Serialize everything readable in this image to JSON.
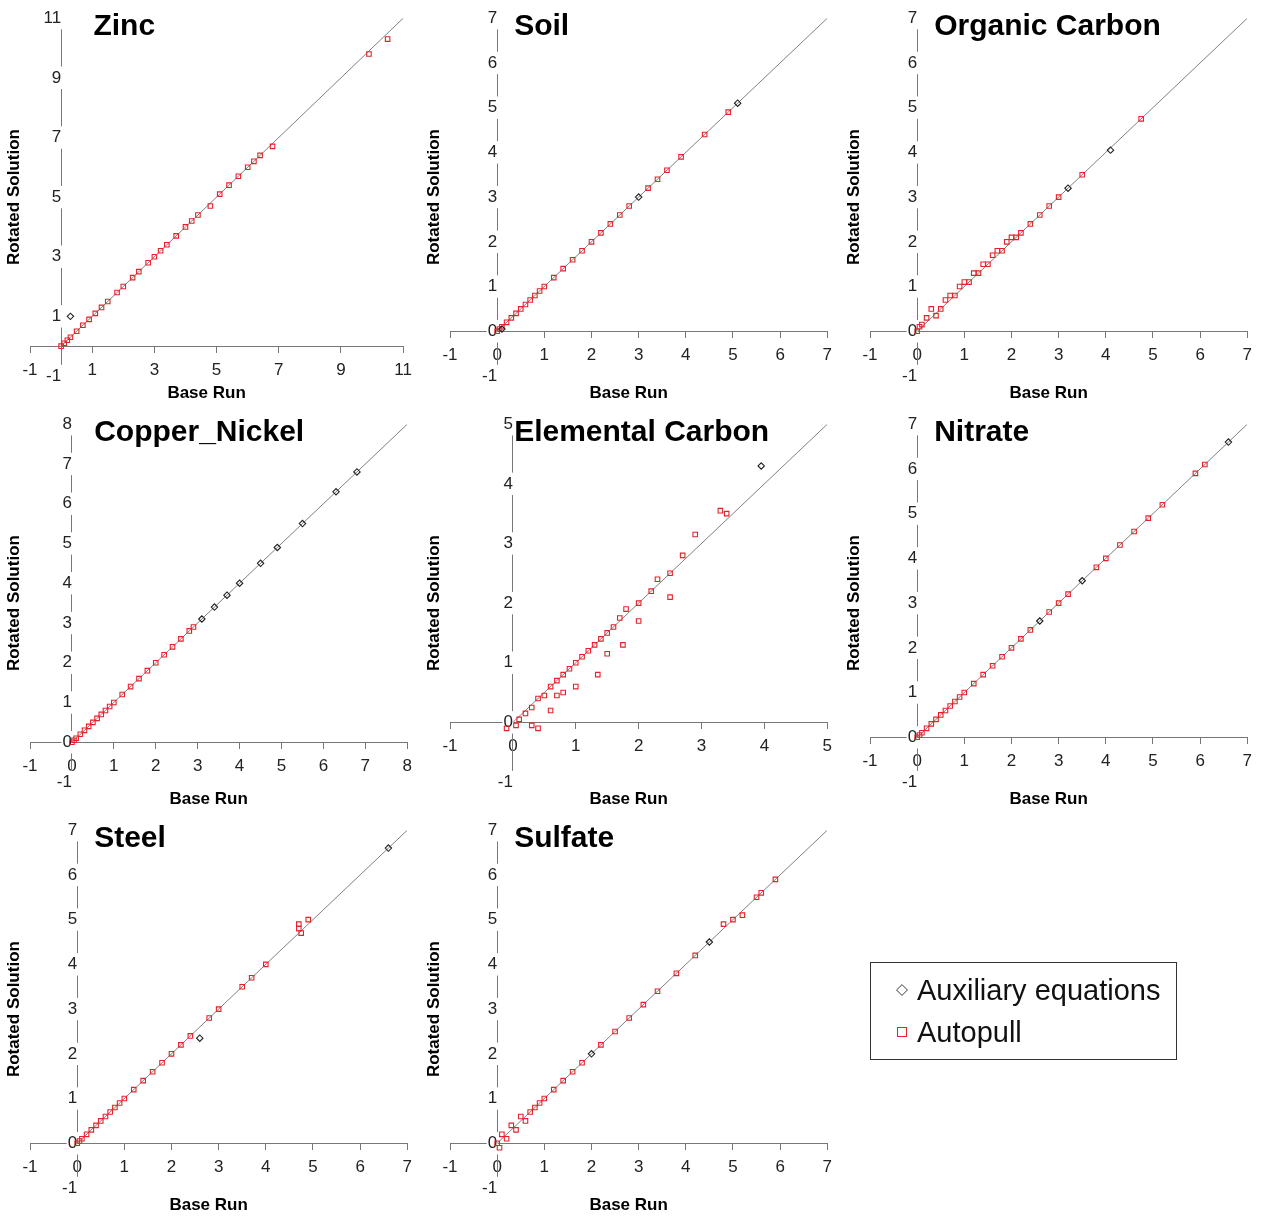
{
  "chart_data": [
    {
      "type": "scatter",
      "title": "Zinc",
      "xlabel": "Base Run",
      "ylabel": "Rotated Solution",
      "xlim": [
        -1,
        11
      ],
      "ylim": [
        -1,
        11
      ],
      "xticks": [
        -1,
        1,
        3,
        5,
        7,
        9,
        11
      ],
      "yticks": [
        -1,
        1,
        3,
        5,
        7,
        9,
        11
      ],
      "series": [
        {
          "color": "#202020",
          "marker": "diamond",
          "x": [
            0.3
          ],
          "values": [
            1.0
          ]
        },
        {
          "color": "#e8202a",
          "marker": "square",
          "x": [
            0,
            0.1,
            0.2,
            0.3,
            0.5,
            0.7,
            0.9,
            1.1,
            1.3,
            1.5,
            1.8,
            2.0,
            2.3,
            2.5,
            2.8,
            3.0,
            3.2,
            3.4,
            3.7,
            4.0,
            4.2,
            4.4,
            4.8,
            5.1,
            5.4,
            5.7,
            6.0,
            6.2,
            6.4,
            6.8,
            9.9,
            10.5
          ],
          "values": [
            0,
            0.1,
            0.2,
            0.3,
            0.5,
            0.7,
            0.9,
            1.1,
            1.3,
            1.5,
            1.8,
            2.0,
            2.3,
            2.5,
            2.8,
            3.0,
            3.2,
            3.4,
            3.7,
            4.0,
            4.2,
            4.4,
            4.7,
            5.1,
            5.4,
            5.7,
            6.0,
            6.2,
            6.4,
            6.7,
            9.8,
            10.3
          ]
        },
        {
          "type": "line",
          "color": "#808080",
          "marker": "none",
          "x": [
            0,
            11
          ],
          "values": [
            0,
            11
          ]
        }
      ]
    },
    {
      "type": "scatter",
      "title": "Soil",
      "xlabel": "Base Run",
      "ylabel": "Rotated Solution",
      "xlim": [
        -1,
        7
      ],
      "ylim": [
        -1,
        7
      ],
      "xticks": [
        -1,
        0,
        1,
        2,
        3,
        4,
        5,
        6,
        7
      ],
      "yticks": [
        -1,
        0,
        1,
        2,
        3,
        4,
        5,
        6,
        7
      ],
      "series": [
        {
          "color": "#202020",
          "marker": "diamond",
          "x": [
            0.1,
            3.0,
            5.1
          ],
          "values": [
            0.05,
            3.0,
            5.1
          ]
        },
        {
          "color": "#e8202a",
          "marker": "square",
          "x": [
            0,
            0.05,
            0.1,
            0.2,
            0.3,
            0.4,
            0.5,
            0.6,
            0.7,
            0.8,
            0.9,
            1.0,
            1.2,
            1.4,
            1.6,
            1.8,
            2.0,
            2.2,
            2.4,
            2.6,
            2.8,
            3.2,
            3.4,
            3.6,
            3.9,
            4.4,
            4.9
          ],
          "values": [
            0,
            0.05,
            0.1,
            0.2,
            0.3,
            0.4,
            0.5,
            0.6,
            0.7,
            0.8,
            0.9,
            1.0,
            1.2,
            1.4,
            1.6,
            1.8,
            2.0,
            2.2,
            2.4,
            2.6,
            2.8,
            3.2,
            3.4,
            3.6,
            3.9,
            4.4,
            4.9
          ]
        },
        {
          "type": "line",
          "color": "#808080",
          "marker": "none",
          "x": [
            0,
            7
          ],
          "values": [
            0,
            7
          ]
        }
      ]
    },
    {
      "type": "scatter",
      "title": "Organic Carbon",
      "xlabel": "Base Run",
      "ylabel": "Rotated Solution",
      "xlim": [
        -1,
        7
      ],
      "ylim": [
        -1,
        7
      ],
      "xticks": [
        -1,
        0,
        1,
        2,
        3,
        4,
        5,
        6,
        7
      ],
      "yticks": [
        -1,
        0,
        1,
        2,
        3,
        4,
        5,
        6,
        7
      ],
      "series": [
        {
          "color": "#202020",
          "marker": "diamond",
          "x": [
            3.2,
            4.1
          ],
          "values": [
            3.2,
            4.05
          ]
        },
        {
          "color": "#e8202a",
          "marker": "square",
          "x": [
            0,
            0.05,
            0.1,
            0.2,
            0.3,
            0.4,
            0.5,
            0.6,
            0.7,
            0.8,
            0.9,
            1.0,
            1.1,
            1.2,
            1.3,
            1.4,
            1.5,
            1.6,
            1.7,
            1.8,
            1.9,
            2.0,
            2.1,
            2.2,
            2.4,
            2.6,
            2.8,
            3.0,
            3.5,
            4.75
          ],
          "values": [
            0,
            0.1,
            0.15,
            0.3,
            0.5,
            0.35,
            0.5,
            0.7,
            0.8,
            0.8,
            1.0,
            1.1,
            1.1,
            1.3,
            1.3,
            1.5,
            1.5,
            1.7,
            1.8,
            1.8,
            2.0,
            2.1,
            2.1,
            2.2,
            2.4,
            2.6,
            2.8,
            3.0,
            3.5,
            4.75
          ]
        },
        {
          "type": "line",
          "color": "#808080",
          "marker": "none",
          "x": [
            0,
            7
          ],
          "values": [
            0,
            7
          ]
        }
      ]
    },
    {
      "type": "scatter",
      "title": "Copper_Nickel",
      "xlabel": "Base Run",
      "ylabel": "Rotated Solution",
      "xlim": [
        -1,
        8
      ],
      "ylim": [
        -1,
        8
      ],
      "xticks": [
        -1,
        0,
        1,
        2,
        3,
        4,
        5,
        6,
        7,
        8
      ],
      "yticks": [
        -1,
        0,
        1,
        2,
        3,
        4,
        5,
        6,
        7,
        8
      ],
      "series": [
        {
          "color": "#202020",
          "marker": "diamond",
          "x": [
            3.1,
            3.4,
            3.7,
            4.0,
            4.5,
            4.9,
            5.5,
            6.3,
            6.8
          ],
          "values": [
            3.1,
            3.4,
            3.7,
            4.0,
            4.5,
            4.9,
            5.5,
            6.3,
            6.8
          ]
        },
        {
          "color": "#e8202a",
          "marker": "square",
          "x": [
            0,
            0.05,
            0.1,
            0.2,
            0.3,
            0.4,
            0.5,
            0.6,
            0.7,
            0.8,
            0.9,
            1.0,
            1.2,
            1.4,
            1.6,
            1.8,
            2.0,
            2.2,
            2.4,
            2.6,
            2.8,
            2.9
          ],
          "values": [
            0,
            0.05,
            0.1,
            0.2,
            0.3,
            0.4,
            0.5,
            0.6,
            0.7,
            0.8,
            0.9,
            1.0,
            1.2,
            1.4,
            1.6,
            1.8,
            2.0,
            2.2,
            2.4,
            2.6,
            2.8,
            2.9
          ]
        },
        {
          "type": "line",
          "color": "#808080",
          "marker": "none",
          "x": [
            0,
            8
          ],
          "values": [
            0,
            8
          ]
        }
      ]
    },
    {
      "type": "scatter",
      "title": "Elemental Carbon",
      "xlabel": "Base Run",
      "ylabel": "Rotated Solution",
      "xlim": [
        -1,
        5
      ],
      "ylim": [
        -1,
        5
      ],
      "xticks": [
        -1,
        0,
        1,
        2,
        3,
        4,
        5
      ],
      "yticks": [
        -1,
        0,
        1,
        2,
        3,
        4,
        5
      ],
      "series": [
        {
          "color": "#202020",
          "marker": "diamond",
          "x": [
            3.95
          ],
          "values": [
            4.3
          ]
        },
        {
          "color": "#e8202a",
          "marker": "square",
          "x": [
            -0.1,
            0.05,
            0.1,
            0.2,
            0.3,
            0.3,
            0.4,
            0.4,
            0.5,
            0.6,
            0.6,
            0.7,
            0.7,
            0.8,
            0.8,
            0.9,
            1.0,
            1.0,
            1.1,
            1.2,
            1.3,
            1.35,
            1.4,
            1.5,
            1.5,
            1.6,
            1.7,
            1.75,
            1.8,
            2.0,
            2.0,
            2.2,
            2.3,
            2.5,
            2.5,
            2.7,
            2.9,
            3.3,
            3.4
          ],
          "values": [
            -0.1,
            -0.05,
            0.05,
            0.15,
            -0.05,
            0.25,
            -0.1,
            0.4,
            0.45,
            0.6,
            0.2,
            0.7,
            0.45,
            0.8,
            0.5,
            0.9,
            1.0,
            0.6,
            1.1,
            1.2,
            1.3,
            0.8,
            1.4,
            1.5,
            1.15,
            1.6,
            1.75,
            1.3,
            1.9,
            2.0,
            1.7,
            2.2,
            2.4,
            2.1,
            2.5,
            2.8,
            3.15,
            3.55,
            3.5
          ]
        },
        {
          "type": "line",
          "color": "#808080",
          "marker": "none",
          "x": [
            0,
            5
          ],
          "values": [
            0,
            5
          ]
        }
      ]
    },
    {
      "type": "scatter",
      "title": "Nitrate",
      "xlabel": "Base Run",
      "ylabel": "Rotated Solution",
      "xlim": [
        -1,
        7
      ],
      "ylim": [
        -1,
        7
      ],
      "xticks": [
        -1,
        0,
        1,
        2,
        3,
        4,
        5,
        6,
        7
      ],
      "yticks": [
        -1,
        0,
        1,
        2,
        3,
        4,
        5,
        6,
        7
      ],
      "series": [
        {
          "color": "#202020",
          "marker": "diamond",
          "x": [
            2.6,
            3.5,
            6.6
          ],
          "values": [
            2.6,
            3.5,
            6.6
          ]
        },
        {
          "color": "#e8202a",
          "marker": "square",
          "x": [
            0,
            0.05,
            0.1,
            0.2,
            0.3,
            0.4,
            0.5,
            0.6,
            0.7,
            0.8,
            0.9,
            1.0,
            1.2,
            1.4,
            1.6,
            1.8,
            2.0,
            2.2,
            2.4,
            2.8,
            3.0,
            3.2,
            3.8,
            4.0,
            4.3,
            4.6,
            4.9,
            5.2,
            5.9,
            6.1
          ],
          "values": [
            0,
            0.05,
            0.1,
            0.2,
            0.3,
            0.4,
            0.5,
            0.6,
            0.7,
            0.8,
            0.9,
            1.0,
            1.2,
            1.4,
            1.6,
            1.8,
            2.0,
            2.2,
            2.4,
            2.8,
            3.0,
            3.2,
            3.8,
            4.0,
            4.3,
            4.6,
            4.9,
            5.2,
            5.9,
            6.1
          ]
        },
        {
          "type": "line",
          "color": "#808080",
          "marker": "none",
          "x": [
            0,
            7
          ],
          "values": [
            0,
            7
          ]
        }
      ]
    },
    {
      "type": "scatter",
      "title": "Steel",
      "xlabel": "Base Run",
      "ylabel": "Rotated Solution",
      "xlim": [
        -1,
        7
      ],
      "ylim": [
        -1,
        7
      ],
      "xticks": [
        -1,
        0,
        1,
        2,
        3,
        4,
        5,
        6,
        7
      ],
      "yticks": [
        -1,
        0,
        1,
        2,
        3,
        4,
        5,
        6,
        7
      ],
      "series": [
        {
          "color": "#202020",
          "marker": "diamond",
          "x": [
            2.6,
            6.6
          ],
          "values": [
            2.35,
            6.6
          ]
        },
        {
          "color": "#e8202a",
          "marker": "square",
          "x": [
            0,
            0.05,
            0.1,
            0.2,
            0.3,
            0.4,
            0.5,
            0.6,
            0.7,
            0.8,
            0.9,
            1.0,
            1.2,
            1.4,
            1.6,
            1.8,
            2.0,
            2.2,
            2.4,
            2.8,
            3.0,
            3.5,
            3.7,
            4.0,
            4.7,
            4.7,
            4.75,
            4.9
          ],
          "values": [
            0,
            0.05,
            0.1,
            0.2,
            0.3,
            0.4,
            0.5,
            0.6,
            0.7,
            0.8,
            0.9,
            1.0,
            1.2,
            1.4,
            1.6,
            1.8,
            2.0,
            2.2,
            2.4,
            2.8,
            3.0,
            3.5,
            3.7,
            4.0,
            4.9,
            4.8,
            4.7,
            5.0
          ]
        },
        {
          "type": "line",
          "color": "#808080",
          "marker": "none",
          "x": [
            0,
            7
          ],
          "values": [
            0,
            7
          ]
        }
      ]
    },
    {
      "type": "scatter",
      "title": "Sulfate",
      "xlabel": "Base Run",
      "ylabel": "Rotated Solution",
      "xlim": [
        -1,
        7
      ],
      "ylim": [
        -1,
        7
      ],
      "xticks": [
        -1,
        0,
        1,
        2,
        3,
        4,
        5,
        6,
        7
      ],
      "yticks": [
        -1,
        0,
        1,
        2,
        3,
        4,
        5,
        6,
        7
      ],
      "legend": "right",
      "series": [
        {
          "name": "Auxiliary equations",
          "color": "#202020",
          "marker": "diamond",
          "x": [
            2.0,
            4.5
          ],
          "values": [
            2.0,
            4.5
          ]
        },
        {
          "name": "Autopull",
          "color": "#e8202a",
          "marker": "square",
          "x": [
            0,
            0.05,
            0.1,
            0.2,
            0.3,
            0.4,
            0.5,
            0.6,
            0.7,
            0.8,
            0.9,
            1.0,
            1.2,
            1.4,
            1.6,
            1.8,
            2.2,
            2.5,
            2.8,
            3.1,
            3.4,
            3.8,
            4.2,
            4.8,
            5.0,
            5.2,
            5.5,
            5.6,
            5.9
          ],
          "values": [
            0,
            -0.1,
            0.2,
            0.1,
            0.4,
            0.3,
            0.6,
            0.5,
            0.7,
            0.8,
            0.9,
            1.0,
            1.2,
            1.4,
            1.6,
            1.8,
            2.2,
            2.5,
            2.8,
            3.1,
            3.4,
            3.8,
            4.2,
            4.9,
            5.0,
            5.1,
            5.5,
            5.6,
            5.9
          ]
        },
        {
          "type": "line",
          "color": "#808080",
          "marker": "none",
          "x": [
            0,
            7
          ],
          "values": [
            0,
            7
          ]
        }
      ]
    }
  ]
}
